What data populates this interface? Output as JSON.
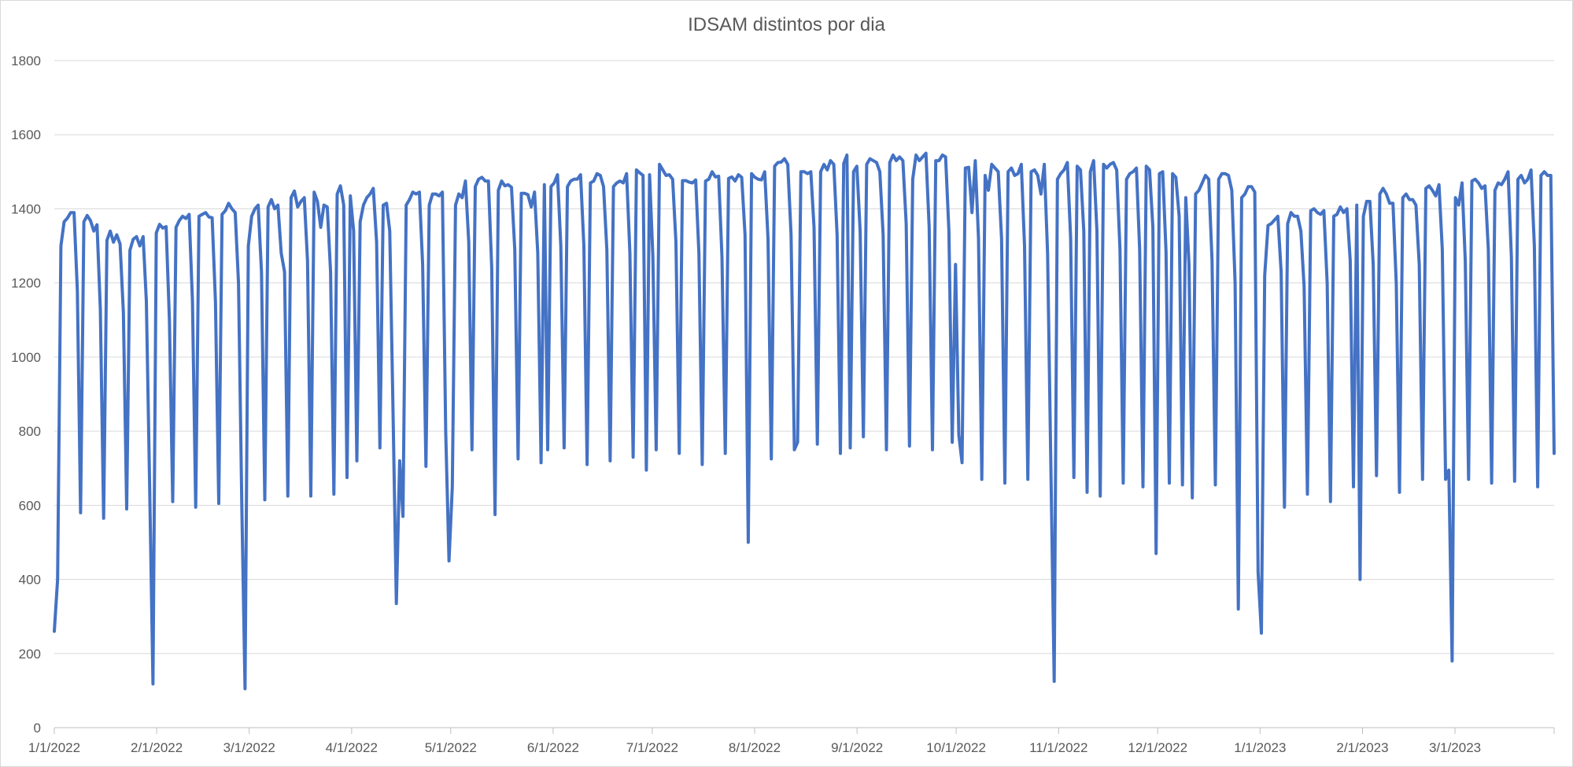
{
  "chart_data": {
    "type": "line",
    "title": "IDSAM distintos por dia",
    "xlabel": "",
    "ylabel": "",
    "ylim": [
      0,
      1800
    ],
    "yticks": [
      0,
      200,
      400,
      600,
      800,
      1000,
      1200,
      1400,
      1600,
      1800
    ],
    "xticks": [
      "1/1/2022",
      "2/1/2022",
      "3/1/2022",
      "4/1/2022",
      "5/1/2022",
      "6/1/2022",
      "7/1/2022",
      "8/1/2022",
      "9/1/2022",
      "10/1/2022",
      "11/1/2022",
      "12/1/2022",
      "1/1/2023",
      "2/1/2023",
      "3/1/2023"
    ],
    "x_start": "2022-01-01",
    "x_end": "2023-03-31",
    "grid": true,
    "legend": "none",
    "color": "#4472c4",
    "series": [
      {
        "values": [
          260,
          400,
          1300,
          1365,
          1375,
          1390,
          1390,
          1180,
          580,
          1365,
          1382,
          1368,
          1340,
          1357,
          1130,
          565,
          1315,
          1340,
          1310,
          1330,
          1305,
          1120,
          590,
          1288,
          1318,
          1325,
          1300,
          1325,
          1150,
          650,
          118,
          1335,
          1358,
          1348,
          1352,
          1100,
          610,
          1350,
          1368,
          1380,
          1374,
          1385,
          1150,
          595,
          1380,
          1385,
          1390,
          1378,
          1376,
          1150,
          605,
          1385,
          1395,
          1415,
          1400,
          1390,
          1200,
          600,
          105,
          1300,
          1380,
          1400,
          1410,
          1230,
          615,
          1405,
          1425,
          1400,
          1410,
          1280,
          1230,
          625,
          1430,
          1448,
          1405,
          1420,
          1430,
          1260,
          625,
          1445,
          1420,
          1350,
          1410,
          1405,
          1230,
          630,
          1440,
          1462,
          1410,
          675,
          1435,
          1340,
          720,
          1365,
          1410,
          1430,
          1440,
          1455,
          1310,
          755,
          1410,
          1415,
          1340,
          850,
          335,
          720,
          570,
          1410,
          1425,
          1445,
          1440,
          1445,
          1250,
          705,
          1410,
          1440,
          1440,
          1435,
          1445,
          800,
          450,
          650,
          1410,
          1440,
          1430,
          1475,
          1310,
          750,
          1460,
          1480,
          1485,
          1475,
          1475,
          1240,
          575,
          1450,
          1475,
          1462,
          1465,
          1458,
          1290,
          725,
          1442,
          1442,
          1438,
          1405,
          1445,
          1280,
          715,
          1465,
          750,
          1460,
          1470,
          1492,
          1300,
          755,
          1460,
          1475,
          1480,
          1480,
          1492,
          1300,
          710,
          1470,
          1475,
          1495,
          1490,
          1460,
          1290,
          720,
          1460,
          1470,
          1475,
          1470,
          1495,
          1280,
          730,
          1505,
          1497,
          1490,
          695,
          1492,
          1270,
          750,
          1520,
          1505,
          1490,
          1492,
          1480,
          1310,
          740,
          1476,
          1476,
          1472,
          1470,
          1478,
          1280,
          710,
          1475,
          1480,
          1500,
          1486,
          1488,
          1270,
          740,
          1482,
          1486,
          1475,
          1492,
          1485,
          1330,
          500,
          1495,
          1485,
          1480,
          1478,
          1500,
          1320,
          725,
          1515,
          1525,
          1526,
          1535,
          1520,
          1330,
          750,
          770,
          1500,
          1500,
          1495,
          1500,
          1350,
          765,
          1500,
          1520,
          1505,
          1530,
          1520,
          1330,
          740,
          1522,
          1545,
          755,
          1500,
          1515,
          1340,
          785,
          1520,
          1535,
          1530,
          1525,
          1500,
          1330,
          750,
          1525,
          1545,
          1530,
          1540,
          1530,
          1360,
          760,
          1480,
          1545,
          1530,
          1540,
          1550,
          1350,
          750,
          1530,
          1530,
          1545,
          1540,
          1340,
          770,
          1250,
          790,
          715,
          1510,
          1512,
          1390,
          1530,
          1320,
          670,
          1490,
          1450,
          1520,
          1510,
          1500,
          1320,
          660,
          1500,
          1510,
          1490,
          1495,
          1520,
          1300,
          670,
          1500,
          1505,
          1490,
          1440,
          1520,
          1280,
          700,
          125,
          1480,
          1495,
          1505,
          1525,
          1320,
          675,
          1515,
          1505,
          1340,
          635,
          1500,
          1530,
          1340,
          625,
          1520,
          1510,
          1520,
          1525,
          1505,
          1290,
          660,
          1480,
          1495,
          1500,
          1510,
          1290,
          650,
          1515,
          1505,
          1350,
          470,
          1495,
          1500,
          1285,
          660,
          1495,
          1485,
          1380,
          655,
          1430,
          1250,
          620,
          1440,
          1450,
          1470,
          1490,
          1480,
          1260,
          655,
          1480,
          1495,
          1495,
          1490,
          1450,
          1200,
          320,
          1430,
          1440,
          1460,
          1460,
          1445,
          420,
          255,
          1220,
          1355,
          1360,
          1370,
          1380,
          1230,
          595,
          1360,
          1390,
          1380,
          1380,
          1340,
          1190,
          630,
          1395,
          1400,
          1390,
          1385,
          1395,
          1200,
          610,
          1380,
          1385,
          1405,
          1390,
          1400,
          1260,
          650,
          1410,
          400,
          1380,
          1420,
          1420,
          1250,
          680,
          1440,
          1455,
          1440,
          1415,
          1415,
          1200,
          635,
          1430,
          1440,
          1425,
          1425,
          1410,
          1250,
          670,
          1455,
          1462,
          1450,
          1435,
          1465,
          1290,
          670,
          695,
          180,
          1430,
          1410,
          1470,
          1260,
          670,
          1475,
          1480,
          1470,
          1455,
          1462,
          1290,
          660,
          1450,
          1470,
          1465,
          1480,
          1500,
          1270,
          665,
          1480,
          1490,
          1470,
          1480,
          1505,
          1300,
          650,
          1490,
          1500,
          1490,
          1490,
          740
        ]
      }
    ]
  }
}
